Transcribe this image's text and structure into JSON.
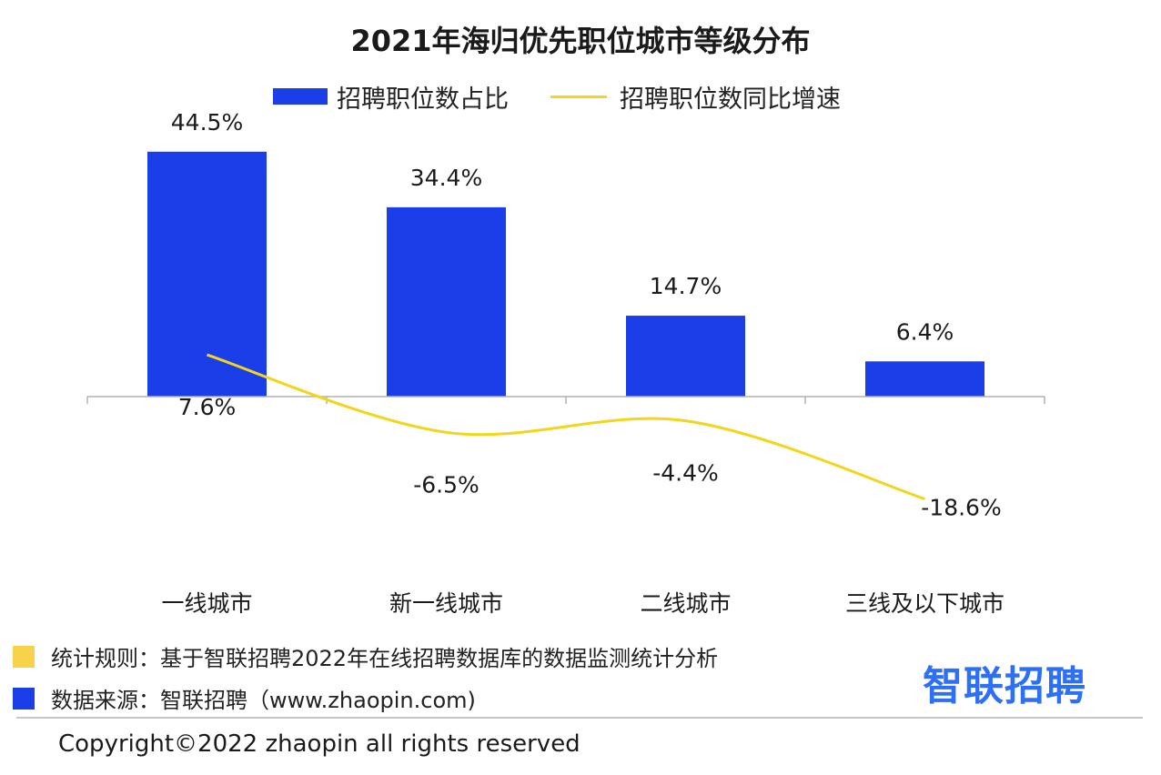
{
  "title": "2021年海归优先职位城市等级分布",
  "legend": {
    "bar_label": "招聘职位数占比",
    "line_label": "招聘职位数同比增速"
  },
  "colors": {
    "bar": "#1a3ee8",
    "line": "#f2d51c",
    "rule_marker": "#f7d24a",
    "source_marker": "#1a3ee8",
    "logo": "#2d6ff5"
  },
  "chart_data": {
    "type": "bar",
    "categories": [
      "一线城市",
      "新一线城市",
      "二线城市",
      "三线及以下城市"
    ],
    "series": [
      {
        "name": "招聘职位数占比",
        "type": "bar",
        "values": [
          44.5,
          34.4,
          14.7,
          6.4
        ],
        "labels": [
          "44.5%",
          "34.4%",
          "14.7%",
          "6.4%"
        ]
      },
      {
        "name": "招聘职位数同比增速",
        "type": "line",
        "values": [
          7.6,
          -6.5,
          -4.4,
          -18.6
        ],
        "labels": [
          "7.6%",
          "-6.5%",
          "-4.4%",
          "-18.6%"
        ]
      }
    ],
    "ylim": [
      -30,
      45
    ],
    "grid": false,
    "legend_position": "top"
  },
  "footer": {
    "rule_text": "统计规则：基于智联招聘2022年在线招聘数据库的数据监测统计分析",
    "source_text": "数据来源：智联招聘（www.zhaopin.com)",
    "logo_text": "智联招聘",
    "copyright": "Copyright©2022 zhaopin all rights reserved"
  }
}
